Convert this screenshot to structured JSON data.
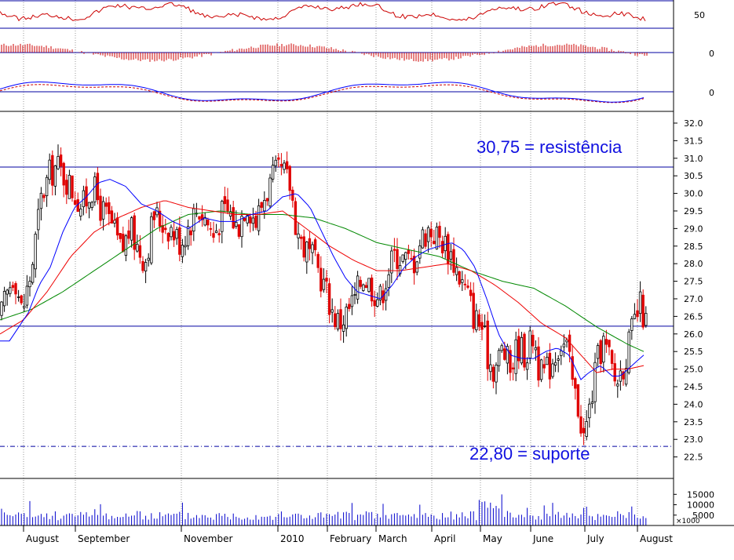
{
  "chart_data": {
    "type": "candlestick",
    "panels": {
      "oscillator": {
        "ticks": [
          "50"
        ]
      },
      "histogram": {
        "ticks": [
          "0"
        ]
      },
      "macd": {
        "ticks": [
          "0"
        ]
      },
      "price": {
        "ylim": [
          22.0,
          32.2
        ],
        "ticks": [
          "32.0",
          "31.5",
          "31.0",
          "30.5",
          "30.0",
          "29.5",
          "29.0",
          "28.5",
          "28.0",
          "27.5",
          "27.0",
          "26.5",
          "26.0",
          "25.5",
          "25.0",
          "24.5",
          "24.0",
          "23.5",
          "23.0",
          "22.5"
        ],
        "tick_values": [
          32.0,
          31.5,
          31.0,
          30.5,
          30.0,
          29.5,
          29.0,
          28.5,
          28.0,
          27.5,
          27.0,
          26.5,
          26.0,
          25.5,
          25.0,
          24.5,
          24.0,
          23.5,
          23.0,
          22.5
        ],
        "levels": [
          30.75,
          26.22,
          22.8
        ],
        "resistance": {
          "value": 30.75,
          "label": "30,75 = resistência"
        },
        "support": {
          "value": 22.8,
          "label": "22,80 = suporte"
        },
        "price_anchors": [
          [
            0,
            26.4
          ],
          [
            10,
            27.2
          ],
          [
            18,
            27.8
          ],
          [
            28,
            26.6
          ],
          [
            40,
            27.8
          ],
          [
            52,
            29.8
          ],
          [
            62,
            30.5
          ],
          [
            72,
            30.8
          ],
          [
            82,
            30.5
          ],
          [
            95,
            30.0
          ],
          [
            105,
            29.6
          ],
          [
            118,
            30.2
          ],
          [
            130,
            29.5
          ],
          [
            142,
            29.1
          ],
          [
            155,
            28.3
          ],
          [
            165,
            29.0
          ],
          [
            175,
            28.5
          ],
          [
            185,
            28.1
          ],
          [
            196,
            29.4
          ],
          [
            206,
            29.2
          ],
          [
            218,
            29.0
          ],
          [
            230,
            28.6
          ],
          [
            240,
            29.1
          ],
          [
            252,
            29.6
          ],
          [
            262,
            29.3
          ],
          [
            272,
            28.8
          ],
          [
            282,
            29.4
          ],
          [
            292,
            29.5
          ],
          [
            302,
            29.0
          ],
          [
            314,
            29.8
          ],
          [
            326,
            29.2
          ],
          [
            338,
            30.0
          ],
          [
            350,
            30.5
          ],
          [
            360,
            30.6
          ],
          [
            370,
            30.2
          ],
          [
            378,
            29.0
          ],
          [
            386,
            28.5
          ],
          [
            396,
            28.2
          ],
          [
            406,
            27.8
          ],
          [
            416,
            27.2
          ],
          [
            424,
            26.6
          ],
          [
            432,
            26.3
          ],
          [
            442,
            26.6
          ],
          [
            452,
            27.0
          ],
          [
            462,
            27.7
          ],
          [
            472,
            27.4
          ],
          [
            484,
            27.0
          ],
          [
            494,
            27.8
          ],
          [
            504,
            28.3
          ],
          [
            516,
            28.1
          ],
          [
            526,
            28.0
          ],
          [
            536,
            28.7
          ],
          [
            546,
            29.0
          ],
          [
            556,
            28.8
          ],
          [
            566,
            28.6
          ],
          [
            576,
            28.2
          ],
          [
            586,
            27.6
          ],
          [
            596,
            27.1
          ],
          [
            604,
            26.5
          ],
          [
            614,
            26.2
          ],
          [
            622,
            25.3
          ],
          [
            630,
            25.0
          ],
          [
            640,
            25.6
          ],
          [
            650,
            25.0
          ],
          [
            660,
            25.7
          ],
          [
            670,
            25.4
          ],
          [
            680,
            26.0
          ],
          [
            688,
            24.8
          ],
          [
            698,
            25.0
          ],
          [
            706,
            25.4
          ],
          [
            714,
            25.8
          ],
          [
            722,
            25.6
          ],
          [
            730,
            24.5
          ],
          [
            738,
            23.8
          ],
          [
            744,
            23.0
          ],
          [
            752,
            24.0
          ],
          [
            760,
            25.1
          ],
          [
            768,
            25.8
          ],
          [
            776,
            25.3
          ],
          [
            784,
            24.6
          ],
          [
            792,
            25.0
          ],
          [
            800,
            25.6
          ],
          [
            808,
            26.3
          ],
          [
            816,
            26.8
          ],
          [
            824,
            26.2
          ]
        ],
        "sma_short_anchors": [
          [
            0,
            25.8
          ],
          [
            12,
            25.8
          ],
          [
            24,
            26.2
          ],
          [
            36,
            26.6
          ],
          [
            50,
            27.4
          ],
          [
            64,
            27.9
          ],
          [
            80,
            28.9
          ],
          [
            95,
            29.6
          ],
          [
            110,
            29.9
          ],
          [
            125,
            30.3
          ],
          [
            140,
            30.4
          ],
          [
            160,
            30.2
          ],
          [
            180,
            29.7
          ],
          [
            200,
            29.5
          ],
          [
            220,
            29.2
          ],
          [
            240,
            29.0
          ],
          [
            260,
            29.3
          ],
          [
            280,
            29.2
          ],
          [
            300,
            29.2
          ],
          [
            320,
            29.4
          ],
          [
            340,
            29.5
          ],
          [
            360,
            29.9
          ],
          [
            378,
            30.0
          ],
          [
            395,
            29.6
          ],
          [
            410,
            28.9
          ],
          [
            425,
            28.2
          ],
          [
            440,
            27.6
          ],
          [
            455,
            27.2
          ],
          [
            470,
            27.1
          ],
          [
            485,
            27.0
          ],
          [
            500,
            27.4
          ],
          [
            515,
            27.9
          ],
          [
            530,
            28.2
          ],
          [
            545,
            28.4
          ],
          [
            560,
            28.5
          ],
          [
            575,
            28.6
          ],
          [
            590,
            28.4
          ],
          [
            605,
            27.9
          ],
          [
            620,
            27.0
          ],
          [
            635,
            26.0
          ],
          [
            650,
            25.4
          ],
          [
            665,
            25.3
          ],
          [
            680,
            25.3
          ],
          [
            695,
            25.5
          ],
          [
            710,
            25.6
          ],
          [
            725,
            25.4
          ],
          [
            740,
            24.7
          ],
          [
            750,
            24.9
          ],
          [
            765,
            25.1
          ],
          [
            780,
            24.8
          ],
          [
            790,
            24.8
          ],
          [
            800,
            25.0
          ],
          [
            810,
            25.2
          ],
          [
            820,
            25.4
          ]
        ],
        "sma_mid_anchors": [
          [
            0,
            26.0
          ],
          [
            30,
            26.4
          ],
          [
            60,
            27.2
          ],
          [
            90,
            28.2
          ],
          [
            120,
            28.9
          ],
          [
            150,
            29.3
          ],
          [
            180,
            29.6
          ],
          [
            210,
            29.8
          ],
          [
            240,
            29.6
          ],
          [
            270,
            29.5
          ],
          [
            300,
            29.4
          ],
          [
            330,
            29.4
          ],
          [
            360,
            29.5
          ],
          [
            390,
            29.0
          ],
          [
            420,
            28.5
          ],
          [
            450,
            28.1
          ],
          [
            480,
            27.8
          ],
          [
            510,
            27.8
          ],
          [
            540,
            27.9
          ],
          [
            570,
            28.0
          ],
          [
            600,
            27.8
          ],
          [
            630,
            27.4
          ],
          [
            660,
            26.9
          ],
          [
            690,
            26.3
          ],
          [
            720,
            25.9
          ],
          [
            740,
            25.4
          ],
          [
            760,
            24.9
          ],
          [
            780,
            25.0
          ],
          [
            800,
            25.0
          ],
          [
            820,
            25.1
          ]
        ],
        "sma_long_anchors": [
          [
            0,
            26.4
          ],
          [
            40,
            26.7
          ],
          [
            80,
            27.2
          ],
          [
            120,
            27.8
          ],
          [
            160,
            28.4
          ],
          [
            200,
            29.0
          ],
          [
            240,
            29.4
          ],
          [
            280,
            29.5
          ],
          [
            320,
            29.4
          ],
          [
            360,
            29.4
          ],
          [
            400,
            29.3
          ],
          [
            440,
            29.0
          ],
          [
            480,
            28.6
          ],
          [
            520,
            28.4
          ],
          [
            560,
            28.2
          ],
          [
            600,
            27.8
          ],
          [
            640,
            27.5
          ],
          [
            680,
            27.3
          ],
          [
            720,
            26.8
          ],
          [
            760,
            26.2
          ],
          [
            800,
            25.7
          ],
          [
            820,
            25.5
          ]
        ]
      },
      "volume": {
        "ticks": [
          "15000",
          "10000",
          "5000"
        ],
        "tick_values": [
          15000,
          10000,
          5000
        ],
        "unit": "×1000"
      }
    },
    "months": [
      {
        "label": "August",
        "pos": 30
      },
      {
        "label": "September",
        "pos": 96
      },
      {
        "label": "November",
        "pos": 231
      },
      {
        "label": "2010",
        "pos": 354
      },
      {
        "label": "February",
        "pos": 417
      },
      {
        "label": "March",
        "pos": 479
      },
      {
        "label": "April",
        "pos": 550
      },
      {
        "label": "May",
        "pos": 612
      },
      {
        "label": "June",
        "pos": 676
      },
      {
        "label": "July",
        "pos": 745
      },
      {
        "label": "August",
        "pos": 812
      }
    ],
    "colors": {
      "up": "#000000",
      "down": "#e00000",
      "sma_short": "#0000ff",
      "sma_mid": "#ee0000",
      "sma_long": "#008800",
      "levels": "#0000a0",
      "annotation": "#1010e0"
    },
    "grid": true
  }
}
